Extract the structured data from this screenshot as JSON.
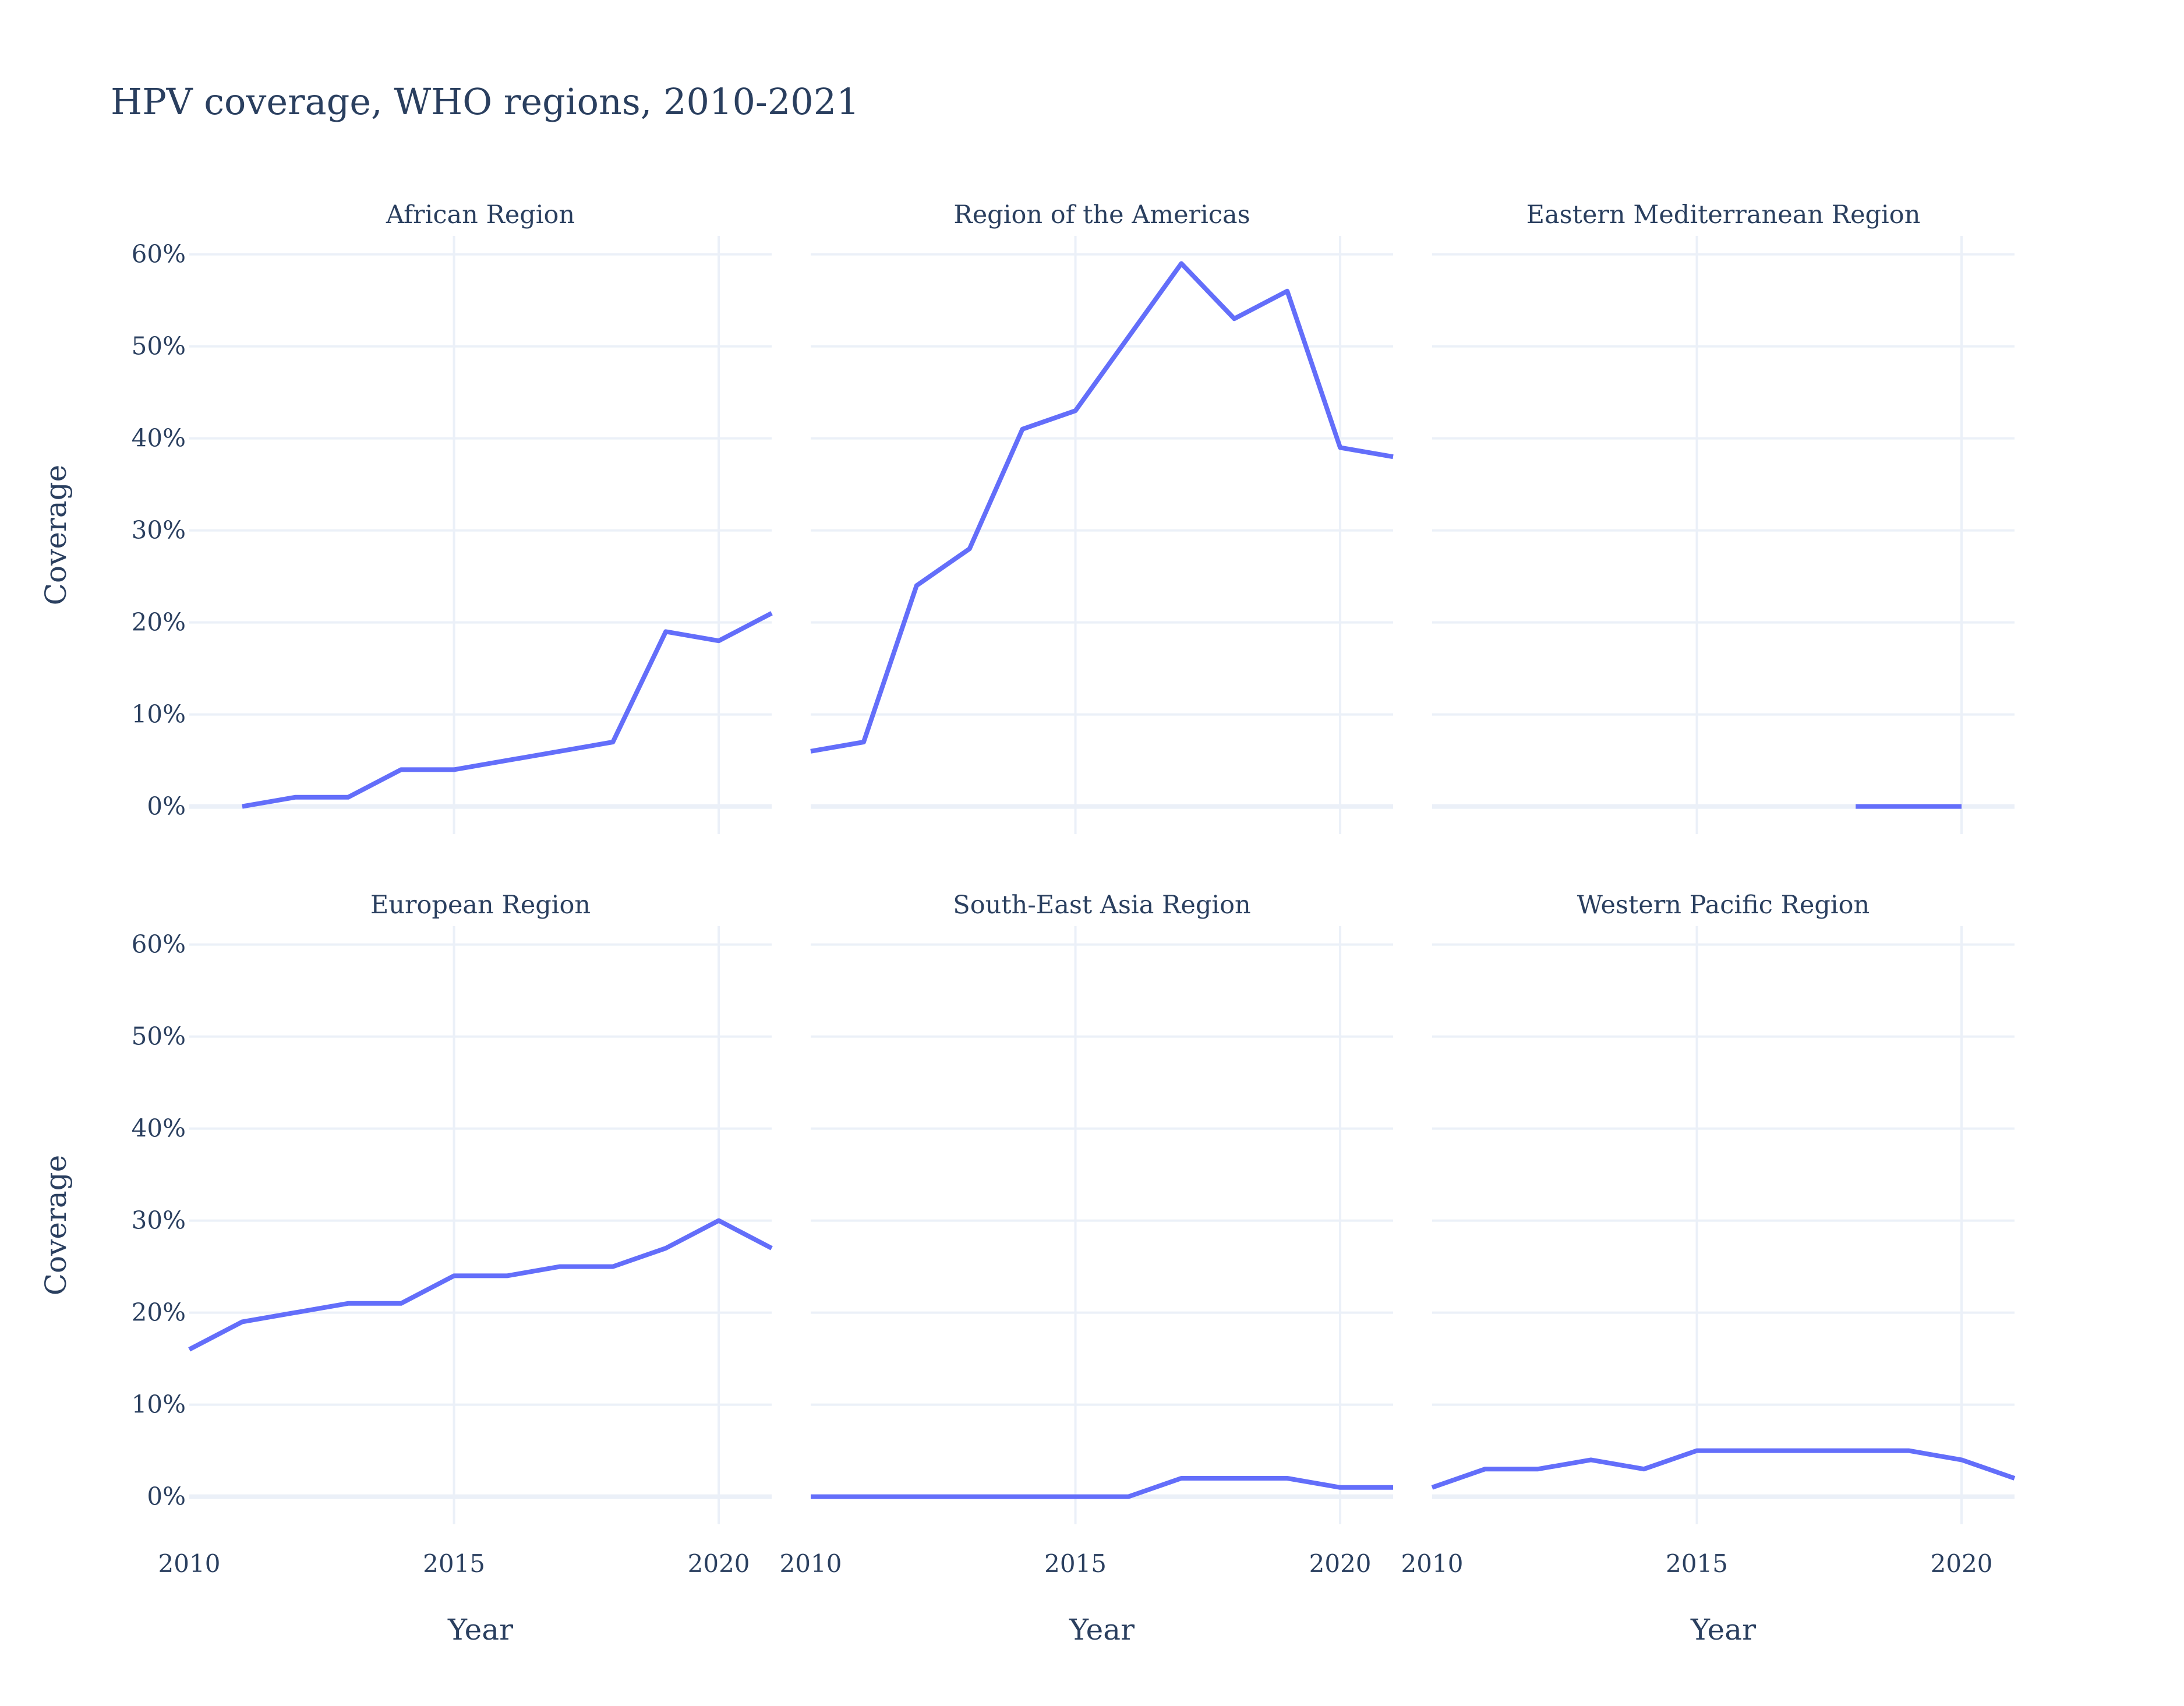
{
  "chart_data": {
    "type": "line",
    "title": "HPV coverage, WHO regions, 2010-2021",
    "xlabel": "Year",
    "ylabel": "Coverage",
    "xlim": [
      2010,
      2021
    ],
    "ylim": [
      -3,
      62
    ],
    "x_ticks": [
      2010,
      2015,
      2020
    ],
    "y_ticks": [
      0,
      10,
      20,
      30,
      40,
      50,
      60
    ],
    "y_tick_suffix": "%",
    "grid": true,
    "line_color": "#636efa",
    "grid_color": "#ebf0f8",
    "text_color": "#2a3f5f",
    "panels": [
      {
        "name": "African Region",
        "points": [
          [
            2011,
            0
          ],
          [
            2012,
            1
          ],
          [
            2013,
            1
          ],
          [
            2014,
            4
          ],
          [
            2015,
            4
          ],
          [
            2016,
            5
          ],
          [
            2017,
            6
          ],
          [
            2018,
            7
          ],
          [
            2019,
            19
          ],
          [
            2020,
            18
          ],
          [
            2021,
            21
          ]
        ]
      },
      {
        "name": "Region of the Americas",
        "points": [
          [
            2010,
            6
          ],
          [
            2011,
            7
          ],
          [
            2012,
            24
          ],
          [
            2013,
            28
          ],
          [
            2014,
            41
          ],
          [
            2015,
            43
          ],
          [
            2016,
            51
          ],
          [
            2017,
            59
          ],
          [
            2018,
            53
          ],
          [
            2019,
            56
          ],
          [
            2020,
            39
          ],
          [
            2021,
            38
          ]
        ]
      },
      {
        "name": "Eastern Mediterranean Region",
        "points": [
          [
            2018,
            0
          ],
          [
            2019,
            0
          ],
          [
            2020,
            0
          ]
        ]
      },
      {
        "name": "European Region",
        "points": [
          [
            2010,
            16
          ],
          [
            2011,
            19
          ],
          [
            2012,
            20
          ],
          [
            2013,
            21
          ],
          [
            2014,
            21
          ],
          [
            2015,
            24
          ],
          [
            2016,
            24
          ],
          [
            2017,
            25
          ],
          [
            2018,
            25
          ],
          [
            2019,
            27
          ],
          [
            2020,
            30
          ],
          [
            2021,
            27
          ]
        ]
      },
      {
        "name": "South-East Asia Region",
        "points": [
          [
            2010,
            0
          ],
          [
            2011,
            0
          ],
          [
            2012,
            0
          ],
          [
            2013,
            0
          ],
          [
            2014,
            0
          ],
          [
            2015,
            0
          ],
          [
            2016,
            0
          ],
          [
            2017,
            2
          ],
          [
            2018,
            2
          ],
          [
            2019,
            2
          ],
          [
            2020,
            1
          ],
          [
            2021,
            1
          ]
        ]
      },
      {
        "name": "Western Pacific Region",
        "points": [
          [
            2010,
            1
          ],
          [
            2011,
            3
          ],
          [
            2012,
            3
          ],
          [
            2013,
            4
          ],
          [
            2014,
            3
          ],
          [
            2015,
            5
          ],
          [
            2016,
            5
          ],
          [
            2017,
            5
          ],
          [
            2018,
            5
          ],
          [
            2019,
            5
          ],
          [
            2020,
            4
          ],
          [
            2021,
            2
          ]
        ]
      }
    ]
  }
}
